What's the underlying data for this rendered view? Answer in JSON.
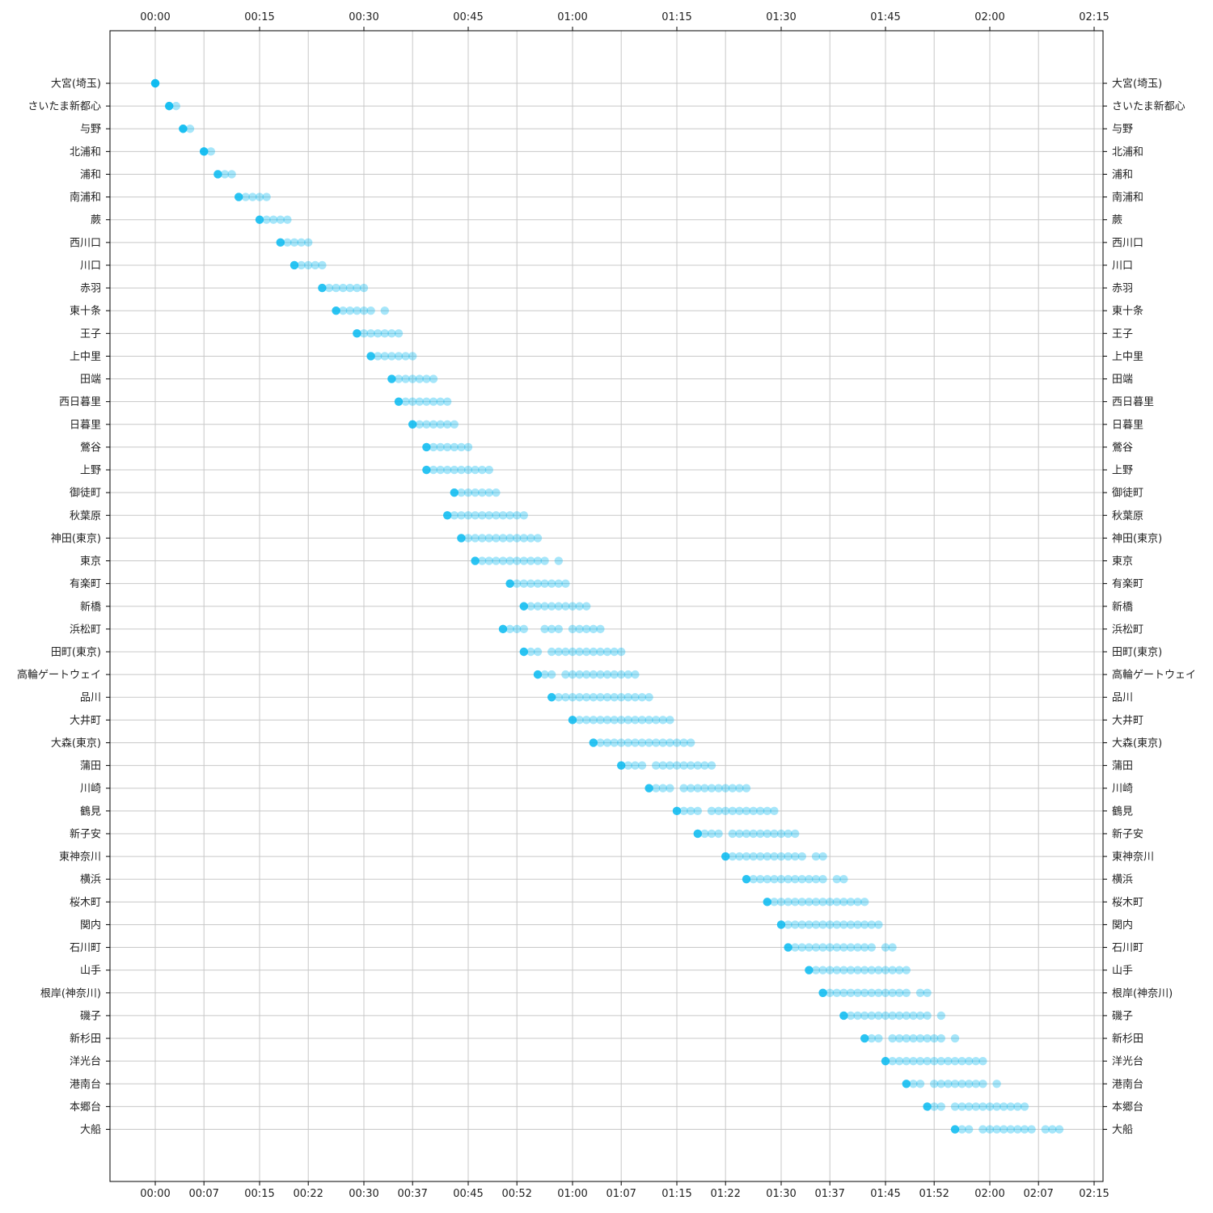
{
  "chart_data": {
    "type": "scatter",
    "title": "",
    "xlabel": "",
    "ylabel": "",
    "x_unit": "elapsed time (hh:mm)",
    "xlim": [
      "-00:07",
      "02:15"
    ],
    "bottom_tick_labels": [
      "00:00",
      "00:07",
      "00:15",
      "00:22",
      "00:30",
      "00:37",
      "00:45",
      "00:52",
      "01:00",
      "01:07",
      "01:15",
      "01:22",
      "01:30",
      "01:37",
      "01:45",
      "01:52",
      "02:00",
      "02:07",
      "02:15"
    ],
    "top_tick_labels": [
      "00:00",
      "00:15",
      "00:30",
      "00:45",
      "01:00",
      "01:15",
      "01:30",
      "01:45",
      "02:00",
      "02:15"
    ],
    "grid": true,
    "marker_color": "#00b8f0",
    "stations": [
      "大宮(埼玉)",
      "さいたま新都心",
      "与野",
      "北浦和",
      "浦和",
      "南浦和",
      "蕨",
      "西川口",
      "川口",
      "赤羽",
      "東十条",
      "王子",
      "上中里",
      "田端",
      "西日暮里",
      "日暮里",
      "鶯谷",
      "上野",
      "御徒町",
      "秋葉原",
      "神田(東京)",
      "東京",
      "有楽町",
      "新橋",
      "浜松町",
      "田町(東京)",
      "高輪ゲートウェイ",
      "品川",
      "大井町",
      "大森(東京)",
      "蒲田",
      "川崎",
      "鶴見",
      "新子安",
      "東神奈川",
      "横浜",
      "桜木町",
      "関内",
      "石川町",
      "山手",
      "根岸(神奈川)",
      "磯子",
      "新杉田",
      "洋光台",
      "港南台",
      "本郷台",
      "大船"
    ],
    "series": [
      {
        "station": "大宮(埼玉)",
        "x_minutes": [
          0,
          0,
          0
        ]
      },
      {
        "station": "さいたま新都心",
        "x_minutes": [
          2,
          3,
          2
        ]
      },
      {
        "station": "与野",
        "x_minutes": [
          4,
          5,
          4
        ]
      },
      {
        "station": "北浦和",
        "x_minutes": [
          7,
          8,
          7
        ]
      },
      {
        "station": "浦和",
        "x_minutes": [
          9,
          10,
          11
        ]
      },
      {
        "station": "南浦和",
        "x_minutes": [
          12,
          13,
          14,
          15,
          16
        ]
      },
      {
        "station": "蕨",
        "x_minutes": [
          15,
          16,
          17,
          18,
          19
        ]
      },
      {
        "station": "西川口",
        "x_minutes": [
          18,
          19,
          20,
          21,
          22
        ]
      },
      {
        "station": "川口",
        "x_minutes": [
          20,
          21,
          22,
          23,
          24
        ]
      },
      {
        "station": "赤羽",
        "x_minutes": [
          24,
          25,
          26,
          27,
          28,
          29,
          30
        ]
      },
      {
        "station": "東十条",
        "x_minutes": [
          26,
          27,
          28,
          29,
          30,
          31,
          33
        ]
      },
      {
        "station": "王子",
        "x_minutes": [
          29,
          30,
          31,
          32,
          33,
          34,
          35
        ]
      },
      {
        "station": "上中里",
        "x_minutes": [
          31,
          32,
          33,
          34,
          35,
          36,
          37
        ]
      },
      {
        "station": "田端",
        "x_minutes": [
          34,
          35,
          36,
          37,
          38,
          39,
          40
        ]
      },
      {
        "station": "西日暮里",
        "x_minutes": [
          35,
          36,
          37,
          38,
          39,
          40,
          41,
          42
        ]
      },
      {
        "station": "日暮里",
        "x_minutes": [
          37,
          38,
          39,
          40,
          41,
          42,
          43
        ]
      },
      {
        "station": "鶯谷",
        "x_minutes": [
          39,
          40,
          41,
          42,
          43,
          44,
          45
        ]
      },
      {
        "station": "上野",
        "x_minutes": [
          39,
          40,
          41,
          42,
          43,
          44,
          45,
          46,
          47,
          48
        ]
      },
      {
        "station": "御徒町",
        "x_minutes": [
          43,
          44,
          45,
          46,
          47,
          48,
          49
        ]
      },
      {
        "station": "秋葉原",
        "x_minutes": [
          42,
          43,
          44,
          45,
          46,
          47,
          48,
          49,
          50,
          51,
          52,
          53
        ]
      },
      {
        "station": "神田(東京)",
        "x_minutes": [
          44,
          45,
          46,
          47,
          48,
          49,
          50,
          51,
          52,
          53,
          54,
          55
        ]
      },
      {
        "station": "東京",
        "x_minutes": [
          46,
          47,
          48,
          49,
          50,
          51,
          52,
          53,
          54,
          55,
          56,
          58
        ]
      },
      {
        "station": "有楽町",
        "x_minutes": [
          51,
          52,
          53,
          54,
          55,
          56,
          57,
          58,
          59
        ]
      },
      {
        "station": "新橋",
        "x_minutes": [
          53,
          54,
          55,
          56,
          57,
          58,
          59,
          60,
          61,
          62
        ]
      },
      {
        "station": "浜松町",
        "x_minutes": [
          50,
          51,
          52,
          53,
          56,
          57,
          58,
          60,
          61,
          62,
          63,
          64
        ]
      },
      {
        "station": "田町(東京)",
        "x_minutes": [
          53,
          54,
          55,
          57,
          58,
          59,
          60,
          61,
          62,
          63,
          64,
          65,
          66,
          67
        ]
      },
      {
        "station": "高輪ゲートウェイ",
        "x_minutes": [
          55,
          56,
          57,
          59,
          60,
          61,
          62,
          63,
          64,
          65,
          66,
          67,
          68,
          69
        ]
      },
      {
        "station": "品川",
        "x_minutes": [
          57,
          58,
          59,
          60,
          61,
          62,
          63,
          64,
          65,
          66,
          67,
          68,
          69,
          70,
          71
        ]
      },
      {
        "station": "大井町",
        "x_minutes": [
          60,
          61,
          62,
          63,
          64,
          65,
          66,
          67,
          68,
          69,
          70,
          71,
          72,
          73,
          74
        ]
      },
      {
        "station": "大森(東京)",
        "x_minutes": [
          63,
          64,
          65,
          66,
          67,
          68,
          69,
          70,
          71,
          72,
          73,
          74,
          75,
          76,
          77
        ]
      },
      {
        "station": "蒲田",
        "x_minutes": [
          67,
          68,
          69,
          70,
          72,
          73,
          74,
          75,
          76,
          77,
          78,
          79,
          80
        ]
      },
      {
        "station": "川崎",
        "x_minutes": [
          71,
          72,
          73,
          74,
          76,
          77,
          78,
          79,
          80,
          81,
          82,
          83,
          84,
          85
        ]
      },
      {
        "station": "鶴見",
        "x_minutes": [
          75,
          76,
          77,
          78,
          80,
          81,
          82,
          83,
          84,
          85,
          86,
          87,
          88,
          89
        ]
      },
      {
        "station": "新子安",
        "x_minutes": [
          78,
          79,
          80,
          81,
          83,
          84,
          85,
          86,
          87,
          88,
          89,
          90,
          91,
          92
        ]
      },
      {
        "station": "東神奈川",
        "x_minutes": [
          82,
          83,
          84,
          85,
          86,
          87,
          88,
          89,
          90,
          91,
          92,
          93,
          95,
          96
        ]
      },
      {
        "station": "横浜",
        "x_minutes": [
          85,
          86,
          87,
          88,
          89,
          90,
          91,
          92,
          93,
          94,
          95,
          96,
          98,
          99
        ]
      },
      {
        "station": "桜木町",
        "x_minutes": [
          88,
          89,
          90,
          91,
          92,
          93,
          94,
          95,
          96,
          97,
          98,
          99,
          100,
          101,
          102
        ]
      },
      {
        "station": "関内",
        "x_minutes": [
          90,
          91,
          92,
          93,
          94,
          95,
          96,
          97,
          98,
          99,
          100,
          101,
          102,
          103,
          104
        ]
      },
      {
        "station": "石川町",
        "x_minutes": [
          91,
          92,
          93,
          94,
          95,
          96,
          97,
          98,
          99,
          100,
          101,
          102,
          103,
          105,
          106
        ]
      },
      {
        "station": "山手",
        "x_minutes": [
          94,
          95,
          96,
          97,
          98,
          99,
          100,
          101,
          102,
          103,
          104,
          105,
          106,
          107,
          108
        ]
      },
      {
        "station": "根岸(神奈川)",
        "x_minutes": [
          96,
          97,
          98,
          99,
          100,
          101,
          102,
          103,
          104,
          105,
          106,
          107,
          108,
          110,
          111
        ]
      },
      {
        "station": "磯子",
        "x_minutes": [
          99,
          100,
          101,
          102,
          103,
          104,
          105,
          106,
          107,
          108,
          109,
          110,
          111,
          113
        ]
      },
      {
        "station": "新杉田",
        "x_minutes": [
          102,
          103,
          104,
          106,
          107,
          108,
          109,
          110,
          111,
          112,
          113,
          115
        ]
      },
      {
        "station": "洋光台",
        "x_minutes": [
          105,
          106,
          107,
          108,
          109,
          110,
          111,
          112,
          113,
          114,
          115,
          116,
          117,
          118,
          119
        ]
      },
      {
        "station": "港南台",
        "x_minutes": [
          108,
          109,
          110,
          112,
          113,
          114,
          115,
          116,
          117,
          118,
          119,
          121
        ]
      },
      {
        "station": "本郷台",
        "x_minutes": [
          111,
          112,
          113,
          115,
          116,
          117,
          118,
          119,
          120,
          121,
          122,
          123,
          124,
          125
        ]
      },
      {
        "station": "大船",
        "x_minutes": [
          115,
          116,
          117,
          119,
          120,
          121,
          122,
          123,
          124,
          125,
          126,
          128,
          129,
          130
        ]
      }
    ]
  }
}
